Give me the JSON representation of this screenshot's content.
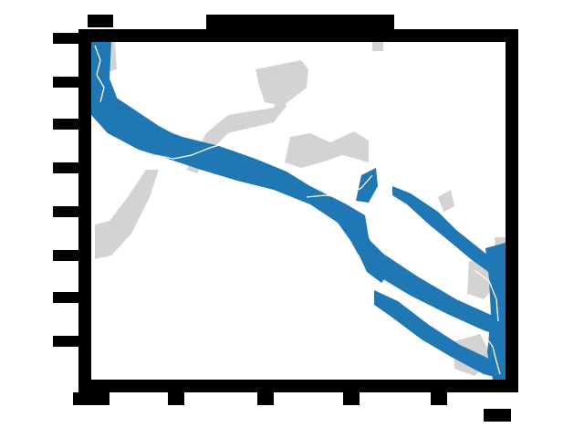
{
  "figure": {
    "title": "",
    "x_unit_label": "",
    "y_top_label": ""
  },
  "colors": {
    "water": "#1f77b4",
    "shore_line": "#ffffff",
    "land_gray": "#d3d3d3",
    "frame": "#000000",
    "background": "#ffffff"
  },
  "legend": []
}
